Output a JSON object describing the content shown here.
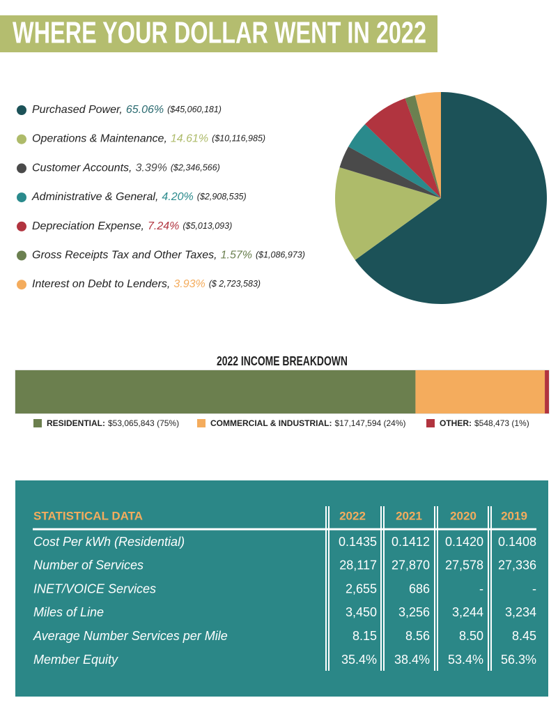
{
  "title": "WHERE YOUR DOLLAR WENT IN 2022",
  "chart_data": [
    {
      "type": "pie",
      "categories": [
        "Purchased Power,",
        "Operations & Maintenance,",
        "Customer Accounts,",
        "Administrative & General,",
        "Depreciation Expense,",
        "Gross Receipts Tax and Other Taxes,",
        "Interest on Debt to Lenders,"
      ],
      "values": [
        65.06,
        14.61,
        3.39,
        4.2,
        7.24,
        1.57,
        3.93
      ],
      "value_labels": [
        "65.06%",
        "14.61%",
        "3.39%",
        "4.20%",
        "7.24%",
        "1.57%",
        "3.93%"
      ],
      "amount_labels": [
        "($45,060,181)",
        "($10,116,985)",
        "($2,346,566)",
        "($2,908,535)",
        "($5,013,093)",
        "($1,086,973)",
        "($ 2,723,583)"
      ],
      "colors": [
        "#1c5258",
        "#aebb6a",
        "#4a4a4a",
        "#2a8a8c",
        "#b1343f",
        "#6b8050",
        "#f4ac5d"
      ]
    },
    {
      "type": "stacked-bar",
      "title": "2022 INCOME BREAKDOWN",
      "categories": [
        "RESIDENTIAL:",
        "COMMERCIAL & INDUSTRIAL:",
        "OTHER:"
      ],
      "values": [
        53065843,
        17147594,
        548473
      ],
      "value_labels": [
        "$53,065,843 (75%)",
        "$17,147,594 (24%)",
        "$548,473 (1%)"
      ],
      "colors": [
        "#6b7f4e",
        "#f4ac5d",
        "#b1343f"
      ]
    }
  ],
  "table": {
    "header": [
      "STATISTICAL DATA",
      "2022",
      "2021",
      "2020",
      "2019"
    ],
    "rows": [
      [
        "Cost Per kWh (Residential)",
        "0.1435",
        "0.1412",
        "0.1420",
        "0.1408"
      ],
      [
        "Number of Services",
        "28,117",
        "27,870",
        "27,578",
        "27,336"
      ],
      [
        "INET/VOICE Services",
        "2,655",
        "686",
        "-",
        "-"
      ],
      [
        "Miles of Line",
        "3,450",
        "3,256",
        "3,244",
        "3,234"
      ],
      [
        "Average Number Services per Mile",
        "8.15",
        "8.56",
        "8.50",
        "8.45"
      ],
      [
        "Member Equity",
        "35.4%",
        "38.4%",
        "53.4%",
        "56.3%"
      ]
    ]
  }
}
